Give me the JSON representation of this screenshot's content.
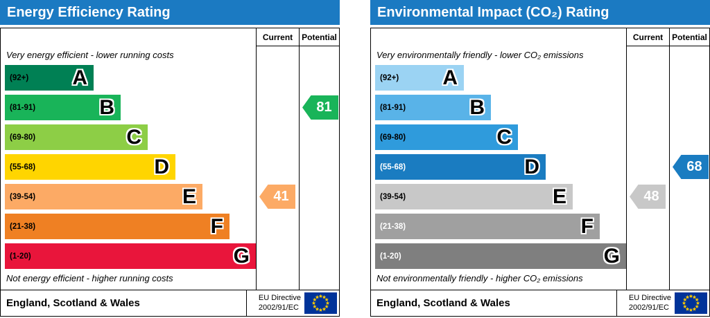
{
  "chart_data": [
    {
      "type": "bar",
      "title": "Energy Efficiency Rating",
      "categories": [
        "A (92+)",
        "B (81-91)",
        "C (69-80)",
        "D (55-68)",
        "E (39-54)",
        "F (21-38)",
        "G (1-20)"
      ],
      "band_colors": [
        "#008054",
        "#19b459",
        "#8dce46",
        "#ffd500",
        "#fcaa65",
        "#ef8023",
        "#e9153b"
      ],
      "series": [
        {
          "name": "Current",
          "value": 41,
          "band": "E"
        },
        {
          "name": "Potential",
          "value": 81,
          "band": "B"
        }
      ],
      "scale_note_top": "Very energy efficient - lower running costs",
      "scale_note_bottom": "Not energy efficient - higher running costs",
      "footer": "England, Scotland & Wales",
      "directive": "EU Directive 2002/91/EC"
    },
    {
      "type": "bar",
      "title": "Environmental Impact (CO₂) Rating",
      "categories": [
        "A (92+)",
        "B (81-91)",
        "C (69-80)",
        "D (55-68)",
        "E (39-54)",
        "F (21-38)",
        "G (1-20)"
      ],
      "band_colors": [
        "#9bd3f3",
        "#59b3e8",
        "#2f9bdc",
        "#1a7cc1",
        "#c8c8c8",
        "#a0a0a0",
        "#7f7f7f"
      ],
      "series": [
        {
          "name": "Current",
          "value": 48,
          "band": "E"
        },
        {
          "name": "Potential",
          "value": 68,
          "band": "D"
        }
      ],
      "scale_note_top": "Very environmentally friendly - lower CO₂ emissions",
      "scale_note_bottom": "Not environmentally friendly - higher CO₂ emissions",
      "footer": "England, Scotland & Wales",
      "directive": "EU Directive 2002/91/EC"
    }
  ],
  "colors": {
    "header_bg": "#1b7ac2",
    "header_text": "#ffffff",
    "flag_bg": "#003399",
    "flag_star": "#ffcc00"
  },
  "panels": [
    {
      "title": "Energy Efficiency Rating",
      "columns": {
        "current": "Current",
        "potential": "Potential"
      },
      "top_note": "Very energy efficient - lower running costs",
      "bottom_note": "Not energy efficient - higher running costs",
      "bands": [
        {
          "letter": "A",
          "range": "(92+)",
          "color": "#008054",
          "range_color": "#000000"
        },
        {
          "letter": "B",
          "range": "(81-91)",
          "color": "#19b459",
          "range_color": "#000000"
        },
        {
          "letter": "C",
          "range": "(69-80)",
          "color": "#8dce46",
          "range_color": "#000000"
        },
        {
          "letter": "D",
          "range": "(55-68)",
          "color": "#ffd500",
          "range_color": "#000000"
        },
        {
          "letter": "E",
          "range": "(39-54)",
          "color": "#fcaa65",
          "range_color": "#000000"
        },
        {
          "letter": "F",
          "range": "(21-38)",
          "color": "#ef8023",
          "range_color": "#000000"
        },
        {
          "letter": "G",
          "range": "(1-20)",
          "color": "#e9153b",
          "range_color": "#000000"
        }
      ],
      "current": {
        "value": "41",
        "band_index": 4,
        "color": "#fcaa65"
      },
      "potential": {
        "value": "81",
        "band_index": 1,
        "color": "#19b459"
      },
      "footer": {
        "region": "England, Scotland & Wales",
        "directive_line1": "EU Directive",
        "directive_line2": "2002/91/EC"
      }
    },
    {
      "title": "Environmental Impact (CO₂) Rating",
      "columns": {
        "current": "Current",
        "potential": "Potential"
      },
      "top_note": "Very environmentally friendly - lower CO₂ emissions",
      "bottom_note": "Not environmentally friendly - higher CO₂ emissions",
      "bands": [
        {
          "letter": "A",
          "range": "(92+)",
          "color": "#9bd3f3",
          "range_color": "#000000"
        },
        {
          "letter": "B",
          "range": "(81-91)",
          "color": "#59b3e8",
          "range_color": "#000000"
        },
        {
          "letter": "C",
          "range": "(69-80)",
          "color": "#2f9bdc",
          "range_color": "#000000"
        },
        {
          "letter": "D",
          "range": "(55-68)",
          "color": "#1a7cc1",
          "range_color": "#ffffff"
        },
        {
          "letter": "E",
          "range": "(39-54)",
          "color": "#c8c8c8",
          "range_color": "#000000"
        },
        {
          "letter": "F",
          "range": "(21-38)",
          "color": "#a0a0a0",
          "range_color": "#ffffff"
        },
        {
          "letter": "G",
          "range": "(1-20)",
          "color": "#7f7f7f",
          "range_color": "#ffffff"
        }
      ],
      "current": {
        "value": "48",
        "band_index": 4,
        "color": "#c8c8c8"
      },
      "potential": {
        "value": "68",
        "band_index": 3,
        "color": "#1a7cc1"
      },
      "footer": {
        "region": "England, Scotland & Wales",
        "directive_line1": "EU Directive",
        "directive_line2": "2002/91/EC"
      }
    }
  ]
}
